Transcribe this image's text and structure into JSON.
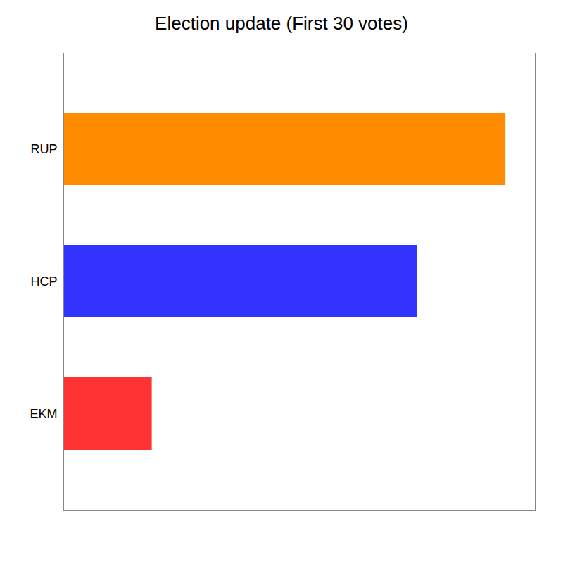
{
  "chart_data": {
    "type": "bar",
    "orientation": "horizontal",
    "title": "Election update (First 30 votes)",
    "categories": [
      "RUP",
      "HCP",
      "EKM"
    ],
    "values": [
      15,
      12,
      3
    ],
    "colors": [
      "#FF8C00",
      "#3333FF",
      "#FF3333"
    ],
    "xlim": [
      0,
      16
    ],
    "tick_labels": "y",
    "grid": false
  }
}
